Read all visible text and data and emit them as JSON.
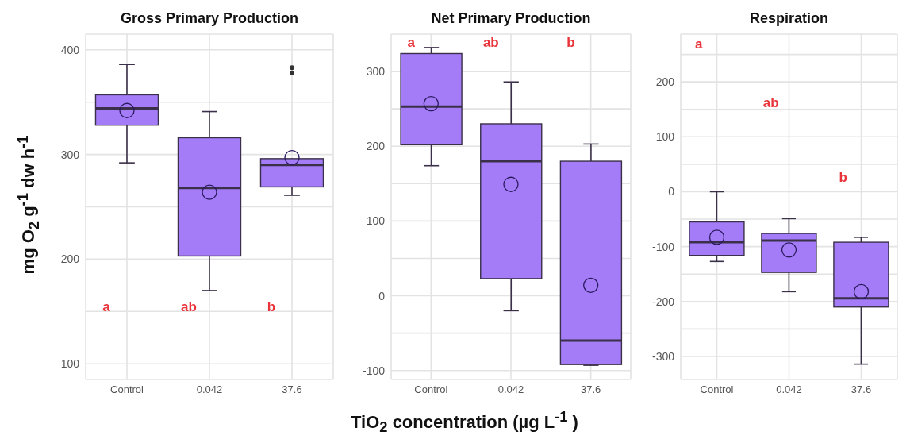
{
  "chart_data": [
    {
      "type": "box",
      "title": "Gross Primary Production",
      "ylabel": "mg O$_{2}$ g$^{-1}$ dw h$^{-1}$",
      "categories": [
        "Control",
        "0.042",
        "37.6"
      ],
      "color": "#a47cf7",
      "boxes": [
        {
          "low": 292,
          "q1": 328,
          "median": 344,
          "q3": 357,
          "high": 386,
          "mean": 342
        },
        {
          "low": 170,
          "q1": 203,
          "median": 268,
          "q3": 316,
          "high": 341,
          "mean": 264
        },
        {
          "low": 261,
          "q1": 269,
          "median": 290,
          "q3": 296,
          "high": 296,
          "mean": 297,
          "outliers": [
            383,
            378
          ]
        }
      ],
      "ylim": [
        85,
        415
      ],
      "yticks": [
        100,
        {
          "value": 150,
          "label": null
        },
        200,
        {
          "value": 250,
          "label": null
        },
        300,
        {
          "value": 350,
          "label": null
        },
        400
      ],
      "grid": true,
      "annotations": [
        "a",
        "ab",
        "b"
      ]
    },
    {
      "type": "box",
      "title": "Net Primary Production",
      "xlabel": "TiO$_{2}$ concentration (µg L$^{-1}$ )",
      "categories": [
        "Control",
        "0.042",
        "37.6"
      ],
      "color": "#a47cf7",
      "boxes": [
        {
          "low": 174,
          "q1": 202,
          "median": 253,
          "q3": 324,
          "high": 332,
          "mean": 257
        },
        {
          "low": -20,
          "q1": 23,
          "median": 180,
          "q3": 230,
          "high": 286,
          "mean": 149
        },
        {
          "low": -93,
          "q1": -92,
          "median": -60,
          "q3": 180,
          "high": 203,
          "mean": 14
        }
      ],
      "ylim": [
        -112,
        350
      ],
      "yticks": [
        -100,
        {
          "value": -50,
          "label": null
        },
        0,
        {
          "value": 50,
          "label": null
        },
        100,
        {
          "value": 150,
          "label": null
        },
        200,
        {
          "value": 250,
          "label": null
        },
        300
      ],
      "grid": true,
      "annotations": [
        "a",
        "ab",
        "b"
      ]
    },
    {
      "type": "box",
      "title": "Respiration",
      "categories": [
        "Control",
        "0.042",
        "37.6"
      ],
      "color": "#a47cf7",
      "boxes": [
        {
          "low": -127,
          "q1": -116,
          "median": -92,
          "q3": -55,
          "high": 0,
          "mean": -83
        },
        {
          "low": -182,
          "q1": -147,
          "median": -89,
          "q3": -76,
          "high": -49,
          "mean": -106
        },
        {
          "low": -314,
          "q1": -210,
          "median": -194,
          "q3": -92,
          "high": -83,
          "mean": -182
        }
      ],
      "ylim": [
        -342,
        287
      ],
      "yticks": [
        -300,
        {
          "value": -250,
          "label": null
        },
        -200,
        {
          "value": -150,
          "label": null
        },
        -100,
        {
          "value": -50,
          "label": null
        },
        0,
        {
          "value": 50,
          "label": null
        },
        100,
        {
          "value": 150,
          "label": null
        },
        200,
        {
          "value": 250,
          "label": null
        }
      ],
      "grid": true,
      "annotations": [
        "a",
        "ab",
        "b"
      ]
    }
  ]
}
